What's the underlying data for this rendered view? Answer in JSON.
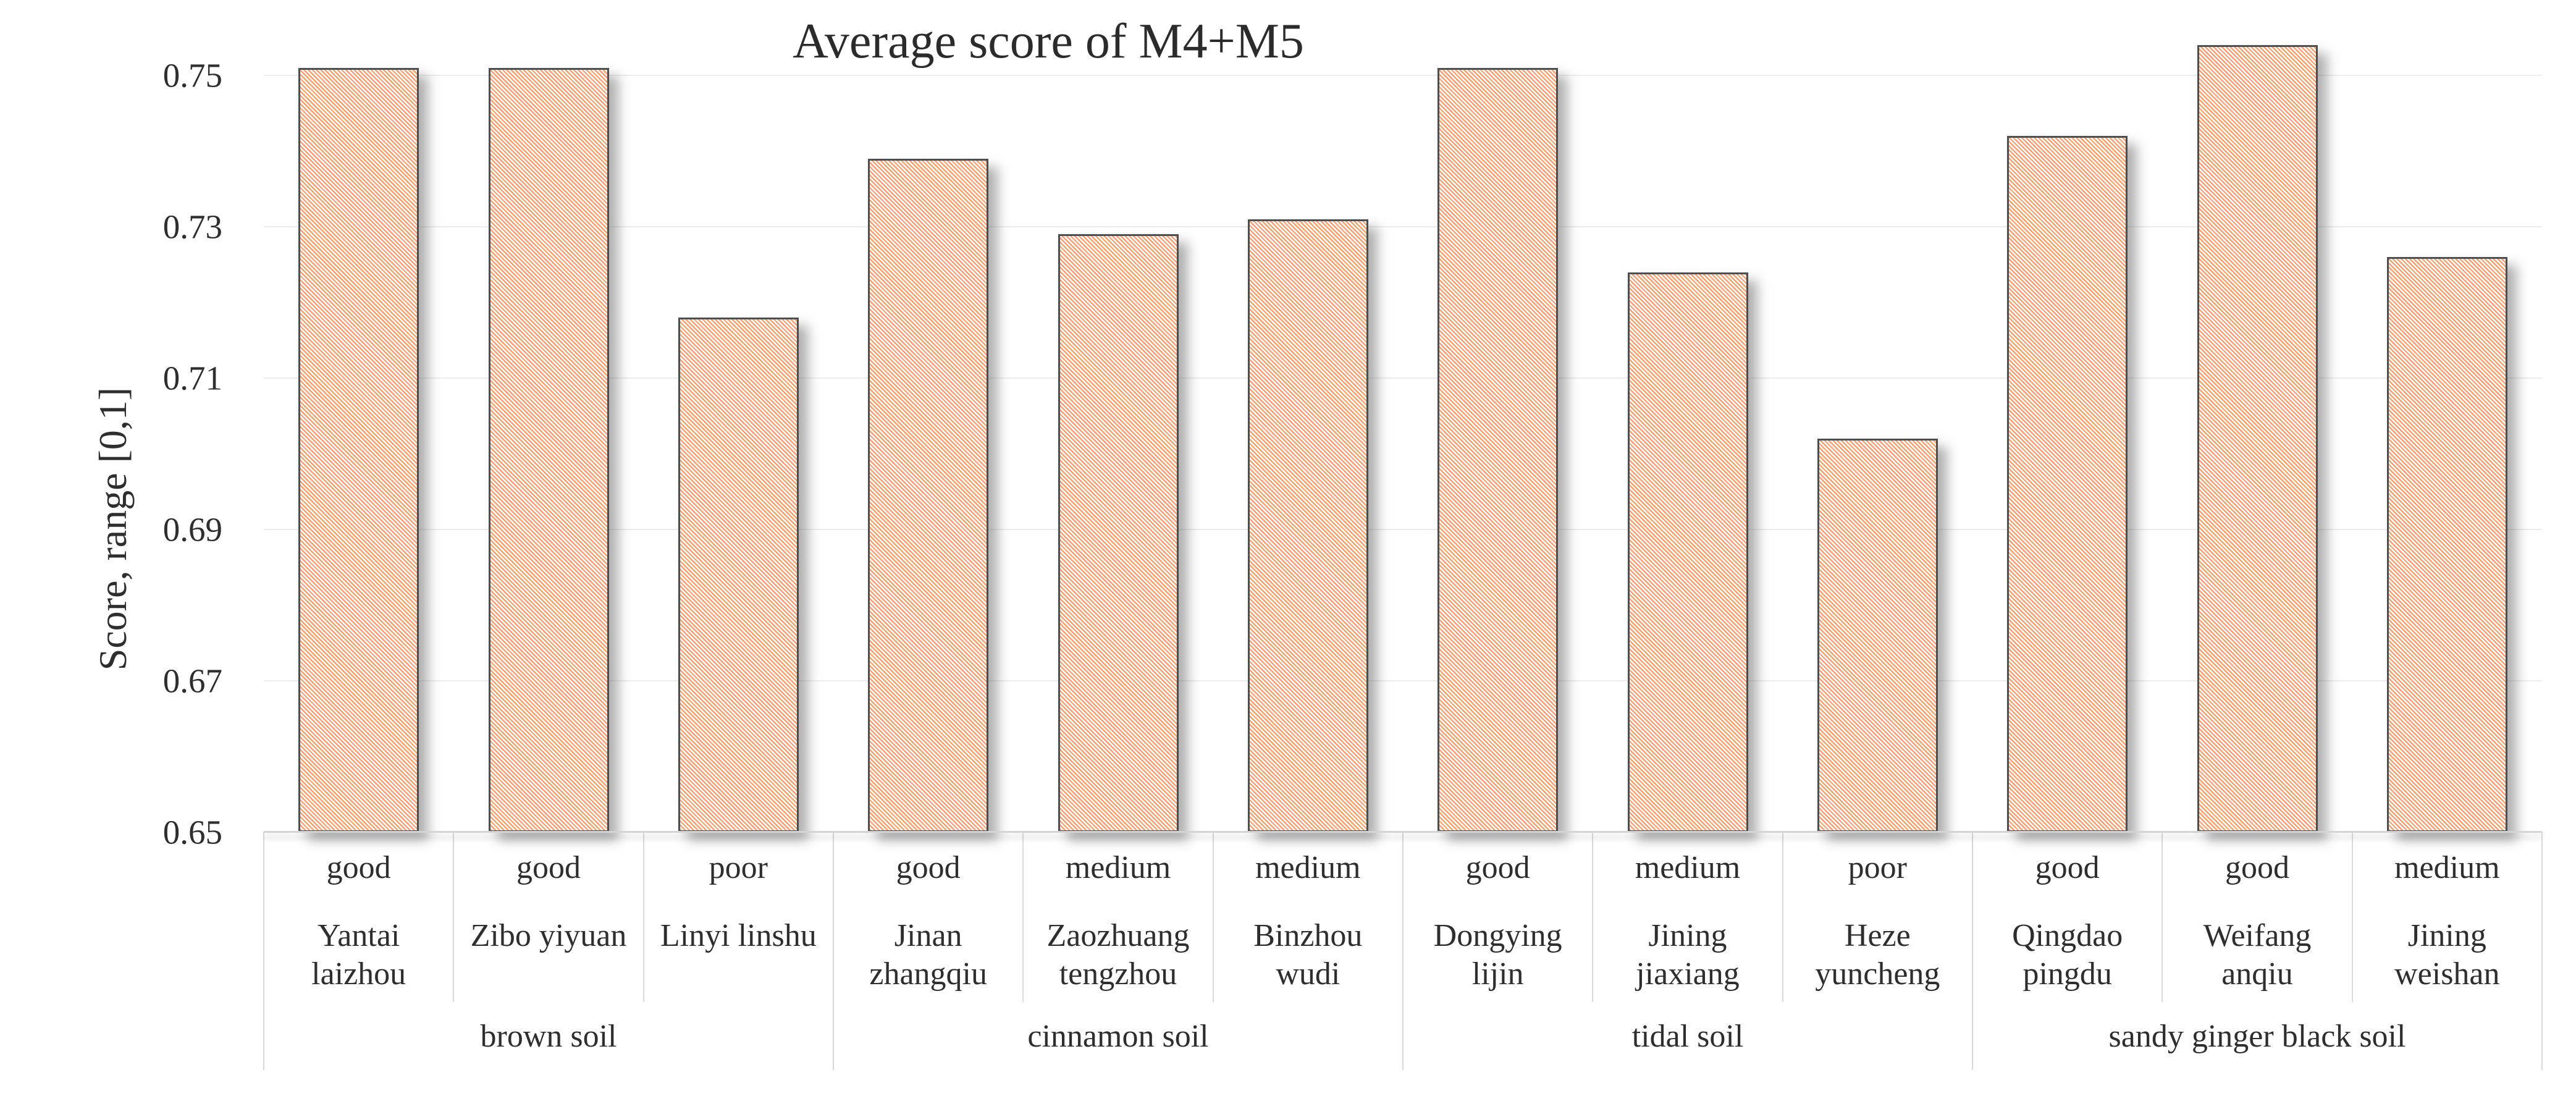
{
  "title": "Average score of M4+M5",
  "y_axis": {
    "title": "Score, range [0,1]",
    "ticks": [
      {
        "label": "0.75",
        "value": 0.75
      },
      {
        "label": "0.73",
        "value": 0.73
      },
      {
        "label": "0.71",
        "value": 0.71
      },
      {
        "label": "0.69",
        "value": 0.69
      },
      {
        "label": "0.67",
        "value": 0.67
      },
      {
        "label": "0.65",
        "value": 0.65
      }
    ]
  },
  "x_axis": {
    "location_lines": [
      [
        "Yantai",
        "laizhou"
      ],
      [
        "Zibo yiyuan"
      ],
      [
        "Linyi linshu"
      ],
      [
        "Jinan",
        "zhangqiu"
      ],
      [
        "Zaozhuang",
        "tengzhou"
      ],
      [
        "Binzhou",
        "wudi"
      ],
      [
        "Dongying",
        "lijin"
      ],
      [
        "Jining",
        "jiaxiang"
      ],
      [
        "Heze",
        "yuncheng"
      ],
      [
        "Qingdao",
        "pingdu"
      ],
      [
        "Weifang",
        "anqiu"
      ],
      [
        "Jining",
        "weishan"
      ]
    ],
    "groups": [
      {
        "label": "brown soil",
        "span": 3
      },
      {
        "label": "cinnamon soil",
        "span": 3
      },
      {
        "label": "tidal soil",
        "span": 3
      },
      {
        "label": "sandy ginger black soil",
        "span": 3
      }
    ]
  },
  "chart_data": {
    "type": "bar",
    "title": "Average score of M4+M5",
    "xlabel": "",
    "ylabel": "Score, range [0,1]",
    "ylim": [
      0.65,
      0.757
    ],
    "ytick_step": 0.02,
    "grid": true,
    "legend": "none",
    "categories": [
      "Yantai laizhou",
      "Zibo yiyuan",
      "Linyi linshu",
      "Jinan zhangqiu",
      "Zaozhuang tengzhou",
      "Binzhou wudi",
      "Dongying lijin",
      "Jining jiaxiang",
      "Heze yuncheng",
      "Qingdao pingdu",
      "Weifang anqiu",
      "Jining weishan"
    ],
    "quality": [
      "good",
      "good",
      "poor",
      "good",
      "medium",
      "medium",
      "good",
      "medium",
      "poor",
      "good",
      "good",
      "medium"
    ],
    "soil_groups": [
      "brown soil",
      "brown soil",
      "brown soil",
      "cinnamon soil",
      "cinnamon soil",
      "cinnamon soil",
      "tidal soil",
      "tidal soil",
      "tidal soil",
      "sandy ginger black soil",
      "sandy ginger black soil",
      "sandy ginger black soil"
    ],
    "values": [
      0.751,
      0.751,
      0.718,
      0.739,
      0.729,
      0.731,
      0.751,
      0.724,
      0.702,
      0.742,
      0.754,
      0.726
    ]
  },
  "colors": {
    "bar_hatch": "#F5A070",
    "bar_border": "#4E4E4E",
    "gridline": "#ECECEC",
    "axis_line": "#D4D4D4",
    "text": "#2E2E2E"
  }
}
